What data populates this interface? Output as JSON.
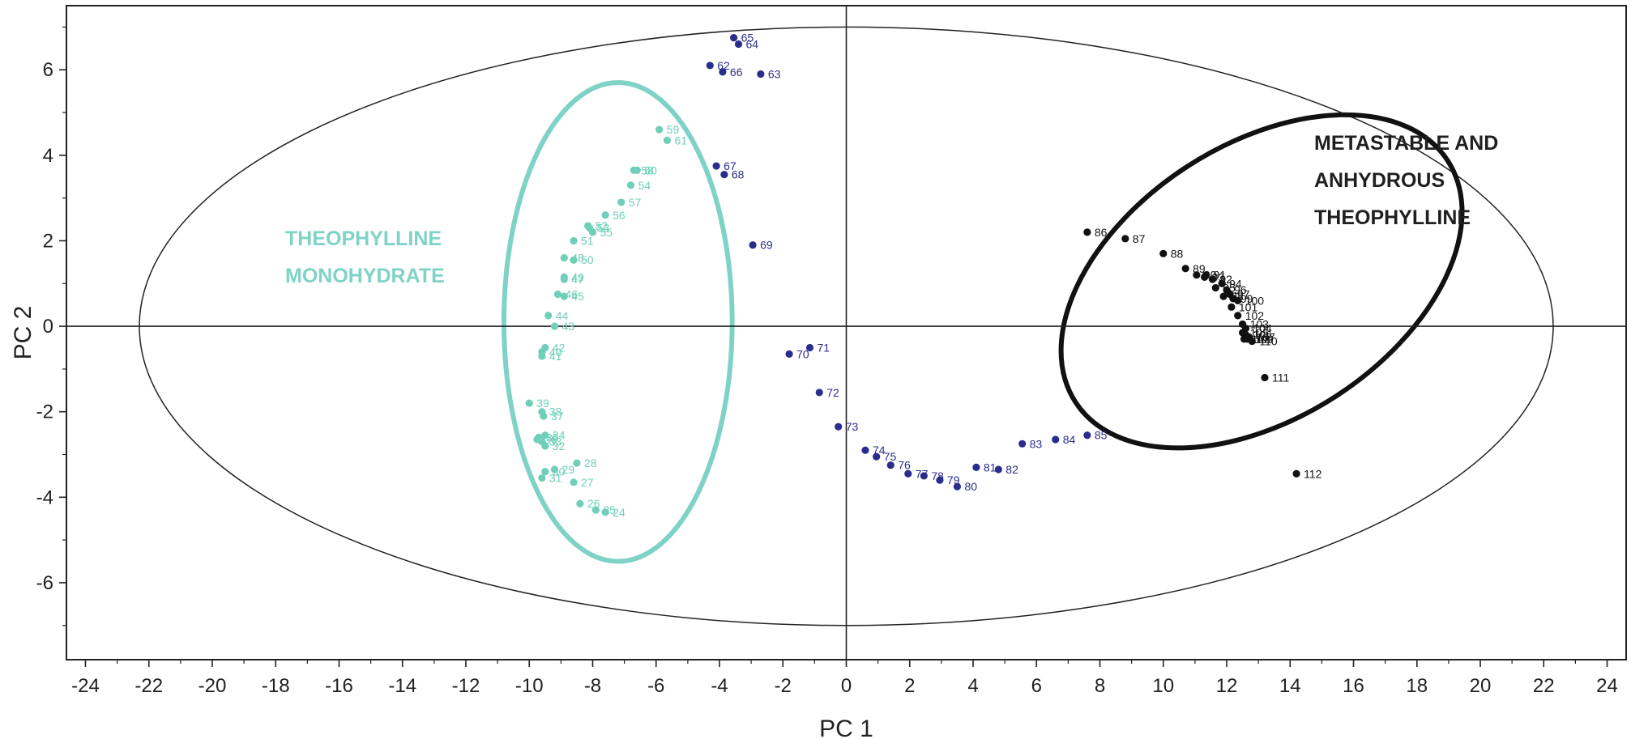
{
  "chart_data": {
    "type": "scatter",
    "xlabel": "PC 1",
    "ylabel": "PC 2",
    "xlim": [
      -24.6,
      24.6
    ],
    "ylim": [
      -7.8,
      7.5
    ],
    "xticks": [
      -24,
      -22,
      -20,
      -18,
      -16,
      -14,
      -12,
      -10,
      -8,
      -6,
      -4,
      -2,
      0,
      2,
      4,
      6,
      8,
      10,
      12,
      14,
      16,
      18,
      20,
      22,
      24
    ],
    "yticks": [
      -6,
      -4,
      -2,
      0,
      2,
      4,
      6
    ],
    "grid": false,
    "reference_lines": {
      "x": 0,
      "y": 0
    },
    "colors": {
      "monohydrate": "#6fcfb8",
      "intermediate": "#2b2d8c",
      "anhydrous": "#111111",
      "monohydrate_ellipse": "#7fd3c6",
      "anhydrous_ellipse": "#111111",
      "confidence_ellipse": "#222222"
    },
    "annotations": [
      {
        "lines": [
          "THEOPHYLLINE",
          "MONOHYDRATE"
        ],
        "color": "#7fd3c6"
      },
      {
        "lines": [
          "METASTABLE AND",
          "ANHYDROUS",
          "THEOPHYLLINE"
        ],
        "color": "#1f1f1f"
      }
    ],
    "ellipses": [
      {
        "name": "confidence",
        "cx": 0,
        "cy": 0,
        "rx": 22.3,
        "ry": 7.0,
        "angle": 0
      },
      {
        "name": "monohydrate",
        "cx": -7.2,
        "cy": 0.1,
        "rx": 3.6,
        "ry": 5.6,
        "angle": 0
      },
      {
        "name": "anhydrous",
        "cx": 13.1,
        "cy": 1.05,
        "rx": 7.0,
        "ry": 3.2,
        "angle": -33
      }
    ],
    "series": [
      {
        "group": "monohydrate",
        "points": [
          {
            "label": "24",
            "x": -7.6,
            "y": -4.35
          },
          {
            "label": "25",
            "x": -7.9,
            "y": -4.3
          },
          {
            "label": "26",
            "x": -8.4,
            "y": -4.15
          },
          {
            "label": "27",
            "x": -8.6,
            "y": -3.65
          },
          {
            "label": "28",
            "x": -8.5,
            "y": -3.2
          },
          {
            "label": "29",
            "x": -9.2,
            "y": -3.35
          },
          {
            "label": "30",
            "x": -9.5,
            "y": -3.4
          },
          {
            "label": "31",
            "x": -9.6,
            "y": -3.55
          },
          {
            "label": "32",
            "x": -9.5,
            "y": -2.8
          },
          {
            "label": "33",
            "x": -9.6,
            "y": -2.7
          },
          {
            "label": "34",
            "x": -9.5,
            "y": -2.55
          },
          {
            "label": "35",
            "x": -9.7,
            "y": -2.6
          },
          {
            "label": "36",
            "x": -9.75,
            "y": -2.65
          },
          {
            "label": "37",
            "x": -9.55,
            "y": -2.1
          },
          {
            "label": "38",
            "x": -9.6,
            "y": -2.0
          },
          {
            "label": "39",
            "x": -10.0,
            "y": -1.8
          },
          {
            "label": "40",
            "x": -9.6,
            "y": -0.6
          },
          {
            "label": "41",
            "x": -9.6,
            "y": -0.7
          },
          {
            "label": "42",
            "x": -9.5,
            "y": -0.5
          },
          {
            "label": "43",
            "x": -9.2,
            "y": 0.0
          },
          {
            "label": "44",
            "x": -9.4,
            "y": 0.25
          },
          {
            "label": "45",
            "x": -8.9,
            "y": 0.7
          },
          {
            "label": "46",
            "x": -9.1,
            "y": 0.75
          },
          {
            "label": "47",
            "x": -8.9,
            "y": 1.1
          },
          {
            "label": "48",
            "x": -8.9,
            "y": 1.6
          },
          {
            "label": "49",
            "x": -8.9,
            "y": 1.15
          },
          {
            "label": "50",
            "x": -8.6,
            "y": 1.55
          },
          {
            "label": "51",
            "x": -8.6,
            "y": 2.0
          },
          {
            "label": "52",
            "x": -8.15,
            "y": 2.35
          },
          {
            "label": "53",
            "x": -8.1,
            "y": 2.3
          },
          {
            "label": "54",
            "x": -6.8,
            "y": 3.3
          },
          {
            "label": "55",
            "x": -8.0,
            "y": 2.2
          },
          {
            "label": "56",
            "x": -7.6,
            "y": 2.6
          },
          {
            "label": "57",
            "x": -7.1,
            "y": 2.9
          },
          {
            "label": "58",
            "x": -6.7,
            "y": 3.65
          },
          {
            "label": "59",
            "x": -5.9,
            "y": 4.6
          },
          {
            "label": "60",
            "x": -6.6,
            "y": 3.65
          },
          {
            "label": "61",
            "x": -5.65,
            "y": 4.35
          }
        ]
      },
      {
        "group": "intermediate",
        "points": [
          {
            "label": "62",
            "x": -4.3,
            "y": 6.1
          },
          {
            "label": "63",
            "x": -2.7,
            "y": 5.9
          },
          {
            "label": "64",
            "x": -3.4,
            "y": 6.6
          },
          {
            "label": "65",
            "x": -3.55,
            "y": 6.75
          },
          {
            "label": "66",
            "x": -3.9,
            "y": 5.95
          },
          {
            "label": "67",
            "x": -4.1,
            "y": 3.75
          },
          {
            "label": "68",
            "x": -3.85,
            "y": 3.55
          },
          {
            "label": "69",
            "x": -2.95,
            "y": 1.9
          },
          {
            "label": "70",
            "x": -1.8,
            "y": -0.65
          },
          {
            "label": "71",
            "x": -1.15,
            "y": -0.5
          },
          {
            "label": "72",
            "x": -0.85,
            "y": -1.55
          },
          {
            "label": "73",
            "x": -0.25,
            "y": -2.35
          },
          {
            "label": "74",
            "x": 0.6,
            "y": -2.9
          },
          {
            "label": "75",
            "x": 0.95,
            "y": -3.05
          },
          {
            "label": "76",
            "x": 1.4,
            "y": -3.25
          },
          {
            "label": "77",
            "x": 1.95,
            "y": -3.45
          },
          {
            "label": "78",
            "x": 2.45,
            "y": -3.5
          },
          {
            "label": "79",
            "x": 2.95,
            "y": -3.6
          },
          {
            "label": "80",
            "x": 3.5,
            "y": -3.75
          },
          {
            "label": "81",
            "x": 4.1,
            "y": -3.3
          },
          {
            "label": "82",
            "x": 4.8,
            "y": -3.35
          },
          {
            "label": "83",
            "x": 5.55,
            "y": -2.75
          },
          {
            "label": "84",
            "x": 6.6,
            "y": -2.65
          },
          {
            "label": "85",
            "x": 7.6,
            "y": -2.55
          }
        ]
      },
      {
        "group": "anhydrous",
        "points": [
          {
            "label": "86",
            "x": 7.6,
            "y": 2.2
          },
          {
            "label": "87",
            "x": 8.8,
            "y": 2.05
          },
          {
            "label": "88",
            "x": 10.0,
            "y": 1.7
          },
          {
            "label": "89",
            "x": 10.7,
            "y": 1.35
          },
          {
            "label": "90",
            "x": 11.05,
            "y": 1.2
          },
          {
            "label": "91",
            "x": 11.35,
            "y": 1.2
          },
          {
            "label": "92",
            "x": 11.55,
            "y": 1.1
          },
          {
            "label": "93",
            "x": 11.3,
            "y": 1.15
          },
          {
            "label": "94",
            "x": 11.85,
            "y": 1.0
          },
          {
            "label": "95",
            "x": 11.65,
            "y": 0.9
          },
          {
            "label": "96",
            "x": 12.0,
            "y": 0.85
          },
          {
            "label": "97",
            "x": 12.1,
            "y": 0.75
          },
          {
            "label": "98",
            "x": 11.9,
            "y": 0.7
          },
          {
            "label": "99",
            "x": 12.2,
            "y": 0.65
          },
          {
            "label": "100",
            "x": 12.35,
            "y": 0.6
          },
          {
            "label": "101",
            "x": 12.15,
            "y": 0.45
          },
          {
            "label": "102",
            "x": 12.35,
            "y": 0.25
          },
          {
            "label": "103",
            "x": 12.5,
            "y": 0.05
          },
          {
            "label": "104",
            "x": 12.6,
            "y": -0.05
          },
          {
            "label": "105",
            "x": 12.5,
            "y": -0.15
          },
          {
            "label": "106",
            "x": 12.6,
            "y": -0.2
          },
          {
            "label": "107",
            "x": 12.7,
            "y": -0.25
          },
          {
            "label": "108",
            "x": 12.55,
            "y": -0.3
          },
          {
            "label": "109",
            "x": 12.65,
            "y": -0.3
          },
          {
            "label": "110",
            "x": 12.8,
            "y": -0.35
          },
          {
            "label": "111",
            "x": 13.2,
            "y": -1.2
          },
          {
            "label": "112",
            "x": 14.2,
            "y": -3.45
          }
        ]
      }
    ]
  }
}
